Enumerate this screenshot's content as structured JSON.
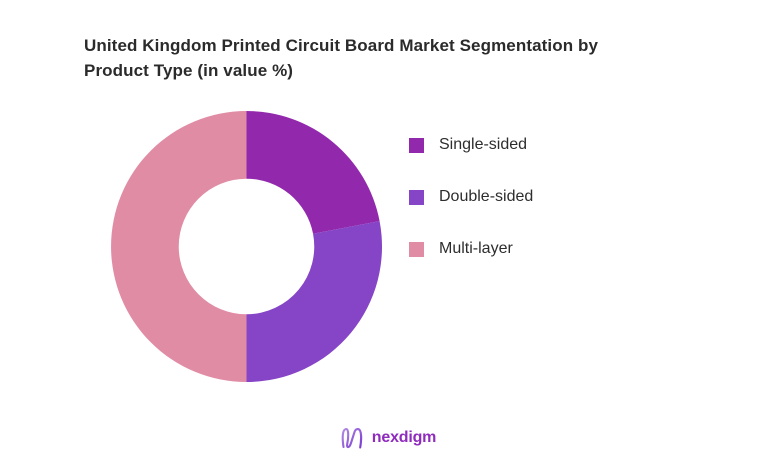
{
  "header": {
    "title_lines": [
      "United Kingdom Printed Circuit Board Market Segmentation by",
      "Product Type (in value %)"
    ]
  },
  "chart_data": {
    "type": "pie",
    "subtype": "donut",
    "title": "United Kingdom Printed Circuit Board Market Segmentation by Product Type (in value %)",
    "categories": [
      "Single-sided",
      "Double-sided",
      "Multi-layer"
    ],
    "values": [
      22,
      28,
      50
    ],
    "unit": "%",
    "colors": [
      "#9229ad",
      "#8644c6",
      "#e18ca5"
    ],
    "start_angle_deg": 0,
    "direction": "clockwise",
    "donut_hole_ratio": 0.5,
    "legend_position": "right",
    "data_labels": false,
    "background": "#ffffff"
  },
  "footer": {
    "brand_text": "nexdigm",
    "brand_color": "#8f2bbd",
    "brand_mark_color_start": "#b18ae0",
    "brand_mark_color_end": "#7a3ad2"
  }
}
